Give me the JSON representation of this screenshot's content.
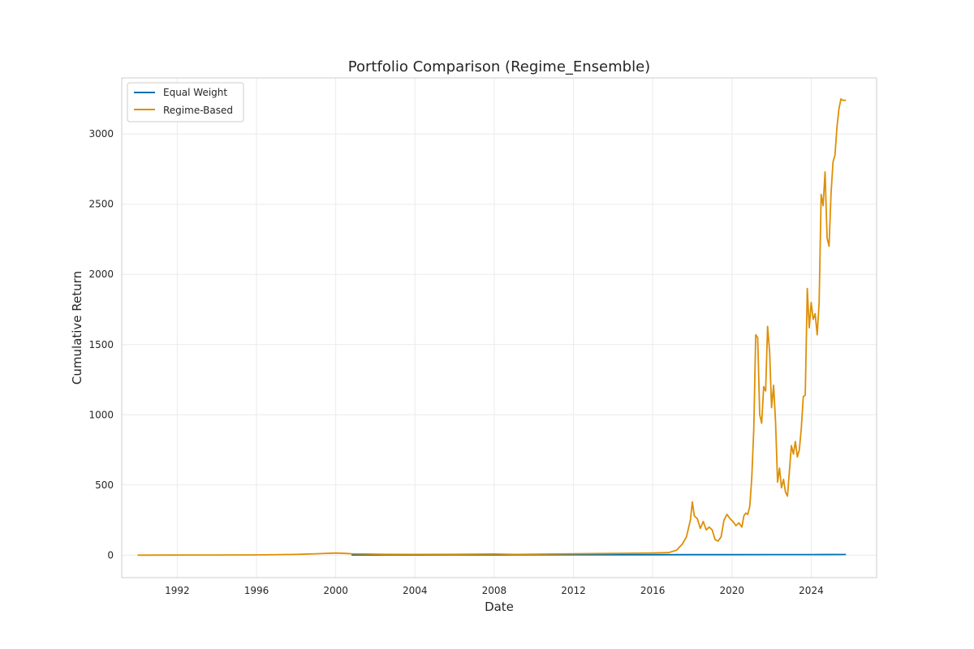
{
  "chart_data": {
    "type": "line",
    "title": "Portfolio Comparison (Regime_Ensemble)",
    "xlabel": "Date",
    "ylabel": "Cumulative Return",
    "xlim": [
      1989.2,
      2027.3
    ],
    "ylim": [
      -160,
      3400
    ],
    "x_ticks": [
      1992,
      1996,
      2000,
      2004,
      2008,
      2012,
      2016,
      2020,
      2024
    ],
    "y_ticks": [
      0,
      500,
      1000,
      1500,
      2000,
      2500,
      3000
    ],
    "grid": true,
    "legend": "upper-left",
    "series": [
      {
        "name": "Equal Weight",
        "color": "#0072b2",
        "x": [
          2000.8,
          2002,
          2004,
          2006,
          2008,
          2010,
          2012,
          2014,
          2016,
          2018,
          2020,
          2022,
          2024,
          2025.75
        ],
        "y": [
          1,
          1.2,
          1.5,
          1.8,
          2,
          2.2,
          2.5,
          2.8,
          3,
          3.3,
          3.6,
          3.9,
          4.2,
          4.5
        ]
      },
      {
        "name": "Regime-Based",
        "color": "#de8f05",
        "x": [
          1990.0,
          1992,
          1994,
          1996,
          1998,
          1999,
          2000,
          2000.5,
          2000.8,
          2001.5,
          2002.5,
          2004,
          2006,
          2008,
          2009,
          2010,
          2012,
          2014,
          2016,
          2016.8,
          2017.2,
          2017.5,
          2017.7,
          2017.9,
          2018.0,
          2018.1,
          2018.25,
          2018.4,
          2018.55,
          2018.7,
          2018.85,
          2019.0,
          2019.15,
          2019.3,
          2019.45,
          2019.6,
          2019.75,
          2019.9,
          2020.05,
          2020.2,
          2020.35,
          2020.5,
          2020.6,
          2020.7,
          2020.8,
          2020.9,
          2021.0,
          2021.1,
          2021.2,
          2021.3,
          2021.4,
          2021.5,
          2021.6,
          2021.7,
          2021.8,
          2021.9,
          2022.0,
          2022.1,
          2022.2,
          2022.3,
          2022.4,
          2022.5,
          2022.6,
          2022.7,
          2022.8,
          2022.9,
          2023.0,
          2023.1,
          2023.2,
          2023.3,
          2023.4,
          2023.5,
          2023.6,
          2023.7,
          2023.8,
          2023.9,
          2024.0,
          2024.1,
          2024.2,
          2024.3,
          2024.4,
          2024.5,
          2024.6,
          2024.7,
          2024.8,
          2024.9,
          2025.0,
          2025.1,
          2025.2,
          2025.3,
          2025.4,
          2025.5,
          2025.6,
          2025.75
        ],
        "y": [
          0,
          0.5,
          1,
          2,
          5,
          10,
          15,
          12,
          10,
          8,
          6,
          5,
          6,
          8,
          5,
          7,
          10,
          12,
          15,
          18,
          35,
          80,
          130,
          250,
          380,
          280,
          260,
          190,
          240,
          180,
          200,
          180,
          110,
          100,
          130,
          250,
          290,
          260,
          240,
          210,
          230,
          200,
          280,
          300,
          290,
          350,
          550,
          900,
          1570,
          1550,
          1000,
          940,
          1200,
          1170,
          1630,
          1450,
          1050,
          1210,
          950,
          520,
          620,
          480,
          540,
          450,
          420,
          600,
          780,
          720,
          810,
          700,
          750,
          900,
          1130,
          1140,
          1900,
          1620,
          1800,
          1680,
          1720,
          1570,
          1800,
          2570,
          2490,
          2730,
          2260,
          2200,
          2580,
          2800,
          2850,
          3050,
          3180,
          3250,
          3240,
          3240
        ]
      }
    ]
  }
}
